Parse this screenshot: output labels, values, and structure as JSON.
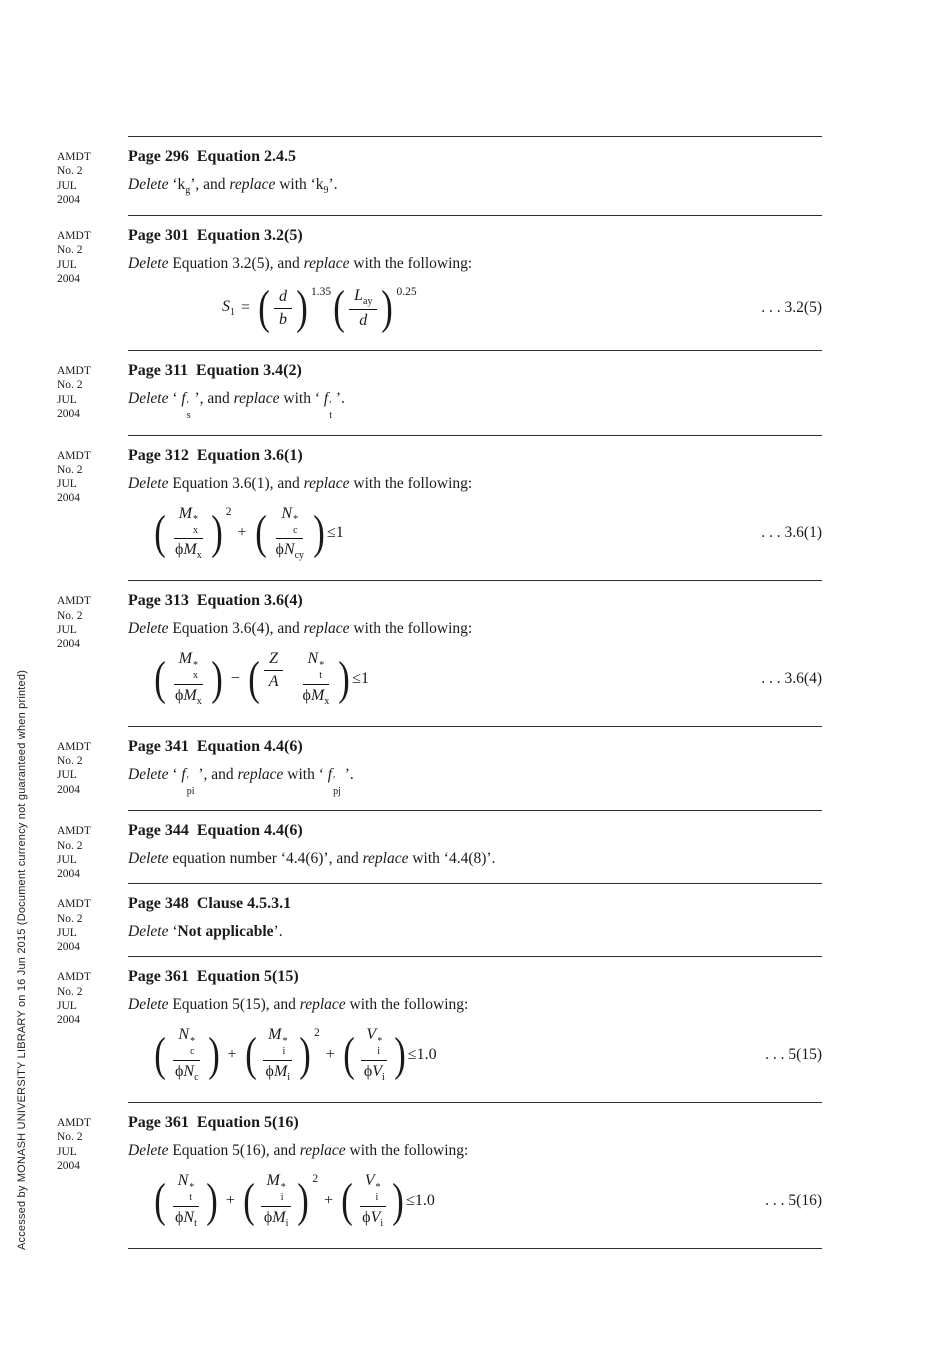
{
  "page": {
    "sidebar_text": "Accessed by MONASH UNIVERSITY LIBRARY on 16 Jun 2015 (Document currency not guaranteed when printed)",
    "amdt_note": [
      "AMDT",
      "No. 2",
      "JUL",
      "2004"
    ]
  },
  "sections": [
    {
      "heading": "Page 296  Equation 2.4.5",
      "body": [
        {
          "t": "Delete",
          "i": true
        },
        {
          "t": " ‘"
        },
        {
          "t": "k",
          "sub": "g"
        },
        {
          "t": "’, and "
        },
        {
          "t": "replace",
          "i": true
        },
        {
          "t": " with ‘"
        },
        {
          "t": "k",
          "sub": "9"
        },
        {
          "t": "’."
        }
      ],
      "equation": null
    },
    {
      "heading": "Page 301  Equation 3.2(5)",
      "body": [
        {
          "t": "Delete",
          "i": true
        },
        {
          "t": " Equation 3.2(5), and "
        },
        {
          "t": "replace",
          "i": true
        },
        {
          "t": " with the following:"
        }
      ],
      "equation": {
        "label": ". . . 3.2(5)",
        "items": [
          {
            "type": "tok",
            "t": "S",
            "i": true,
            "sub": "1"
          },
          {
            "type": "op",
            "t": "="
          },
          {
            "type": "grp",
            "exp": "1.35",
            "items": [
              {
                "type": "frac",
                "num": [
                  {
                    "t": "d",
                    "i": true
                  }
                ],
                "den": [
                  {
                    "t": "b",
                    "i": true
                  }
                ]
              }
            ]
          },
          {
            "type": "grp",
            "exp": "0.25",
            "items": [
              {
                "type": "frac",
                "num": [
                  {
                    "t": "L",
                    "i": true,
                    "sub": "ay"
                  }
                ],
                "den": [
                  {
                    "t": "d",
                    "i": true
                  }
                ]
              }
            ]
          }
        ]
      }
    },
    {
      "heading": "Page 311  Equation 3.4(2)",
      "body": [
        {
          "t": "Delete",
          "i": true
        },
        {
          "t": " ‘ "
        },
        {
          "t": "f",
          "i": true,
          "sup": "′",
          "sub": "s"
        },
        {
          "t": " ’, and "
        },
        {
          "t": "replace",
          "i": true
        },
        {
          "t": " with ‘ "
        },
        {
          "t": "f",
          "i": true,
          "sup": "′",
          "sub": "t"
        },
        {
          "t": " ’."
        }
      ],
      "equation": null
    },
    {
      "heading": "Page 312  Equation 3.6(1)",
      "body": [
        {
          "t": "Delete",
          "i": true
        },
        {
          "t": " Equation 3.6(1), and "
        },
        {
          "t": "replace",
          "i": true
        },
        {
          "t": " with the following:"
        }
      ],
      "equation": {
        "label": ". . . 3.6(1)",
        "items": [
          {
            "type": "grp",
            "exp": "2",
            "items": [
              {
                "type": "frac",
                "num": [
                  {
                    "t": "M",
                    "i": true,
                    "sup": "*",
                    "sub": "x"
                  }
                ],
                "den": [
                  {
                    "t": "ϕ"
                  },
                  {
                    "t": "M",
                    "i": true,
                    "sub": "x"
                  }
                ]
              }
            ]
          },
          {
            "type": "op",
            "t": "+"
          },
          {
            "type": "grp",
            "items": [
              {
                "type": "frac",
                "num": [
                  {
                    "t": "N",
                    "i": true,
                    "sup": "*",
                    "sub": "c"
                  }
                ],
                "den": [
                  {
                    "t": "ϕ"
                  },
                  {
                    "t": "N",
                    "i": true,
                    "sub": "cy"
                  }
                ]
              }
            ]
          },
          {
            "type": "tok",
            "t": "≤1"
          }
        ]
      }
    },
    {
      "heading": "Page 313  Equation 3.6(4)",
      "body": [
        {
          "t": "Delete",
          "i": true
        },
        {
          "t": " Equation 3.6(4), and "
        },
        {
          "t": "replace",
          "i": true
        },
        {
          "t": " with the following:"
        }
      ],
      "equation": {
        "label": ". . . 3.6(4)",
        "items": [
          {
            "type": "grp",
            "items": [
              {
                "type": "frac",
                "num": [
                  {
                    "t": "M",
                    "i": true,
                    "sup": "*",
                    "sub": "x"
                  }
                ],
                "den": [
                  {
                    "t": "ϕ"
                  },
                  {
                    "t": "M",
                    "i": true,
                    "sub": "x"
                  }
                ]
              }
            ]
          },
          {
            "type": "op",
            "t": "−"
          },
          {
            "type": "grp",
            "items": [
              {
                "type": "frac",
                "num": [
                  {
                    "t": "Z",
                    "i": true
                  }
                ],
                "den": [
                  {
                    "t": "A",
                    "i": true
                  }
                ]
              },
              {
                "type": "sp"
              },
              {
                "type": "frac",
                "num": [
                  {
                    "t": "N",
                    "i": true,
                    "sup": "*",
                    "sub": "t"
                  }
                ],
                "den": [
                  {
                    "t": "ϕ"
                  },
                  {
                    "t": "M",
                    "i": true,
                    "sub": "x"
                  }
                ]
              }
            ]
          },
          {
            "type": "tok",
            "t": "≤1"
          }
        ]
      }
    },
    {
      "heading": "Page 341  Equation 4.4(6)",
      "body": [
        {
          "t": "Delete",
          "i": true
        },
        {
          "t": " ‘ "
        },
        {
          "t": "f",
          "i": true,
          "sup": "′",
          "sub": "pi"
        },
        {
          "t": " ’, and "
        },
        {
          "t": "replace",
          "i": true
        },
        {
          "t": " with ‘ "
        },
        {
          "t": "f",
          "i": true,
          "sup": "′",
          "sub": "pj"
        },
        {
          "t": " ’."
        }
      ],
      "equation": null
    },
    {
      "heading": "Page 344  Equation 4.4(6)",
      "body": [
        {
          "t": "Delete",
          "i": true
        },
        {
          "t": " equation number ‘4.4(6)’, and "
        },
        {
          "t": "replace",
          "i": true
        },
        {
          "t": " with ‘4.4(8)’."
        }
      ],
      "equation": null
    },
    {
      "heading": "Page 348  Clause 4.5.3.1",
      "body": [
        {
          "t": "Delete",
          "i": true
        },
        {
          "t": " ‘"
        },
        {
          "t": "Not applicable",
          "b": true
        },
        {
          "t": "’."
        }
      ],
      "equation": null
    },
    {
      "heading": "Page 361  Equation 5(15)",
      "body": [
        {
          "t": "Delete",
          "i": true
        },
        {
          "t": " Equation 5(15), and "
        },
        {
          "t": "replace",
          "i": true
        },
        {
          "t": " with the following:"
        }
      ],
      "equation": {
        "label": ". . . 5(15)",
        "items": [
          {
            "type": "grp",
            "items": [
              {
                "type": "frac",
                "num": [
                  {
                    "t": "N",
                    "i": true,
                    "sup": "*",
                    "sub": "c"
                  }
                ],
                "den": [
                  {
                    "t": "ϕ"
                  },
                  {
                    "t": "N",
                    "i": true,
                    "sub": "c"
                  }
                ]
              }
            ]
          },
          {
            "type": "op",
            "t": "+"
          },
          {
            "type": "grp",
            "exp": "2",
            "items": [
              {
                "type": "frac",
                "num": [
                  {
                    "t": "M",
                    "i": true,
                    "sup": "*",
                    "sub": "i"
                  }
                ],
                "den": [
                  {
                    "t": "ϕ"
                  },
                  {
                    "t": "M",
                    "i": true,
                    "sub": "i"
                  }
                ]
              }
            ]
          },
          {
            "type": "op",
            "t": "+"
          },
          {
            "type": "grp",
            "items": [
              {
                "type": "frac",
                "num": [
                  {
                    "t": "V",
                    "i": true,
                    "sup": "*",
                    "sub": "i"
                  }
                ],
                "den": [
                  {
                    "t": "ϕ"
                  },
                  {
                    "t": "V",
                    "i": true,
                    "sub": "i"
                  }
                ]
              }
            ]
          },
          {
            "type": "tok",
            "t": "≤1.0"
          }
        ]
      }
    },
    {
      "heading": "Page 361  Equation 5(16)",
      "body": [
        {
          "t": "Delete",
          "i": true
        },
        {
          "t": " Equation 5(16), and "
        },
        {
          "t": "replace",
          "i": true
        },
        {
          "t": " with the following:"
        }
      ],
      "equation": {
        "label": ". . . 5(16)",
        "items": [
          {
            "type": "grp",
            "items": [
              {
                "type": "frac",
                "num": [
                  {
                    "t": "N",
                    "i": true,
                    "sup": "*",
                    "sub": "t"
                  }
                ],
                "den": [
                  {
                    "t": "ϕ"
                  },
                  {
                    "t": "N",
                    "i": true,
                    "sub": "t"
                  }
                ]
              }
            ]
          },
          {
            "type": "op",
            "t": "+"
          },
          {
            "type": "grp",
            "exp": "2",
            "items": [
              {
                "type": "frac",
                "num": [
                  {
                    "t": "M",
                    "i": true,
                    "sup": "*",
                    "sub": "i"
                  }
                ],
                "den": [
                  {
                    "t": "ϕ"
                  },
                  {
                    "t": "M",
                    "i": true,
                    "sub": "i"
                  }
                ]
              }
            ]
          },
          {
            "type": "op",
            "t": "+"
          },
          {
            "type": "grp",
            "items": [
              {
                "type": "frac",
                "num": [
                  {
                    "t": "V",
                    "i": true,
                    "sup": "*",
                    "sub": "i"
                  }
                ],
                "den": [
                  {
                    "t": "ϕ"
                  },
                  {
                    "t": "V",
                    "i": true,
                    "sub": "i"
                  }
                ]
              }
            ]
          },
          {
            "type": "tok",
            "t": "≤1.0"
          }
        ]
      }
    }
  ]
}
